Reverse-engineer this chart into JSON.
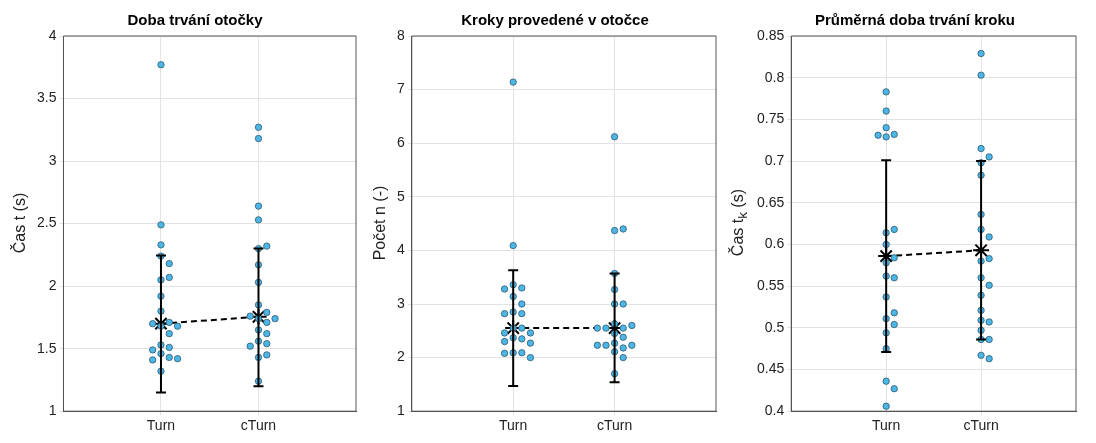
{
  "chart_data": [
    {
      "type": "scatter",
      "title": "Doba trvání otočky",
      "ylabel": "Čas t (s)",
      "categories": [
        "Turn",
        "cTurn"
      ],
      "ylim": [
        1,
        4
      ],
      "yticks": [
        1,
        1.5,
        2,
        2.5,
        3,
        3.5,
        4
      ],
      "grid": true,
      "series": [
        {
          "color": "#4db6e6",
          "marker": "circle",
          "x": [
            "Turn",
            "Turn",
            "Turn",
            "Turn",
            "Turn",
            "Turn",
            "Turn",
            "Turn",
            "Turn",
            "Turn",
            "Turn",
            "Turn",
            "Turn",
            "Turn",
            "Turn",
            "Turn",
            "Turn",
            "Turn",
            "Turn",
            "Turn",
            "Turn",
            "Turn",
            "cTurn",
            "cTurn",
            "cTurn",
            "cTurn",
            "cTurn",
            "cTurn",
            "cTurn",
            "cTurn",
            "cTurn",
            "cTurn",
            "cTurn",
            "cTurn",
            "cTurn",
            "cTurn",
            "cTurn",
            "cTurn",
            "cTurn",
            "cTurn",
            "cTurn",
            "cTurn",
            "cTurn",
            "cTurn"
          ],
          "values": [
            3.77,
            2.49,
            2.33,
            2.24,
            2.18,
            2.05,
            2.07,
            1.92,
            1.8,
            1.68,
            1.71,
            1.7,
            1.68,
            1.62,
            1.53,
            1.51,
            1.49,
            1.46,
            1.43,
            1.41,
            1.42,
            1.32,
            3.27,
            3.18,
            2.64,
            2.53,
            2.3,
            2.32,
            2.17,
            2.03,
            1.85,
            1.79,
            1.74,
            1.71,
            1.76,
            1.74,
            1.65,
            1.62,
            1.56,
            1.54,
            1.52,
            1.43,
            1.45,
            1.24
          ]
        },
        {
          "type": "line",
          "color": "#000000",
          "marker": "cross",
          "line_style": "dashed",
          "x": [
            "Turn",
            "cTurn"
          ],
          "values": [
            1.7,
            1.755
          ],
          "errors": [
            [
              1.15,
              2.245
            ],
            [
              1.2,
              2.3
            ]
          ]
        }
      ]
    },
    {
      "type": "scatter",
      "title": "Kroky provedené v otočce",
      "ylabel": "Počet n (-)",
      "categories": [
        "Turn",
        "cTurn"
      ],
      "ylim": [
        1,
        8
      ],
      "yticks": [
        1,
        2,
        3,
        4,
        5,
        6,
        7,
        8
      ],
      "grid": true,
      "series": [
        {
          "color": "#4db6e6",
          "marker": "circle",
          "x": [
            "Turn",
            "Turn",
            "Turn",
            "Turn",
            "Turn",
            "Turn",
            "Turn",
            "Turn",
            "Turn",
            "Turn",
            "Turn",
            "Turn",
            "Turn",
            "Turn",
            "Turn",
            "Turn",
            "Turn",
            "Turn",
            "Turn",
            "Turn",
            "Turn",
            "Turn",
            "cTurn",
            "cTurn",
            "cTurn",
            "cTurn",
            "cTurn",
            "cTurn",
            "cTurn",
            "cTurn",
            "cTurn",
            "cTurn",
            "cTurn",
            "cTurn",
            "cTurn",
            "cTurn",
            "cTurn",
            "cTurn",
            "cTurn",
            "cTurn",
            "cTurn",
            "cTurn",
            "cTurn",
            "cTurn"
          ],
          "values": [
            7.14,
            4.09,
            3.36,
            3.3,
            3.28,
            3.14,
            3,
            2.85,
            2.82,
            2.82,
            2.55,
            2.55,
            2.46,
            2.46,
            2.37,
            2.35,
            2.3,
            2.27,
            2.09,
            2.09,
            2.08,
            2,
            6.12,
            4.37,
            4.4,
            3.57,
            3.27,
            3,
            3,
            2.63,
            2.55,
            2.55,
            2.6,
            2.55,
            2.45,
            2.38,
            2.27,
            2.23,
            2.23,
            2.23,
            2.18,
            2.11,
            2,
            1.7
          ]
        },
        {
          "type": "line",
          "color": "#000000",
          "marker": "cross",
          "line_style": "dashed",
          "x": [
            "Turn",
            "cTurn"
          ],
          "values": [
            2.55,
            2.55
          ],
          "errors": [
            [
              1.47,
              3.63
            ],
            [
              1.54,
              3.57
            ]
          ]
        }
      ]
    },
    {
      "type": "scatter",
      "title": "Průměrná doba trvání kroku",
      "ylabel": "Čas t$_{k}$ (s)",
      "categories": [
        "Turn",
        "cTurn"
      ],
      "ylim": [
        0.4,
        0.85
      ],
      "yticks": [
        0.4,
        0.45,
        0.5,
        0.55,
        0.6,
        0.65,
        0.7,
        0.75,
        0.8,
        0.85
      ],
      "grid": true,
      "series": [
        {
          "color": "#4db6e6",
          "marker": "circle",
          "x": [
            "Turn",
            "Turn",
            "Turn",
            "Turn",
            "Turn",
            "Turn",
            "Turn",
            "Turn",
            "Turn",
            "Turn",
            "Turn",
            "Turn",
            "Turn",
            "Turn",
            "Turn",
            "Turn",
            "Turn",
            "Turn",
            "Turn",
            "Turn",
            "Turn",
            "Turn",
            "cTurn",
            "cTurn",
            "cTurn",
            "cTurn",
            "cTurn",
            "cTurn",
            "cTurn",
            "cTurn",
            "cTurn",
            "cTurn",
            "cTurn",
            "cTurn",
            "cTurn",
            "cTurn",
            "cTurn",
            "cTurn",
            "cTurn",
            "cTurn",
            "cTurn",
            "cTurn",
            "cTurn",
            "cTurn"
          ],
          "values": [
            0.783,
            0.76,
            0.74,
            0.732,
            0.729,
            0.731,
            0.614,
            0.618,
            0.6,
            0.578,
            0.584,
            0.562,
            0.56,
            0.537,
            0.511,
            0.518,
            0.504,
            0.494,
            0.475,
            0.436,
            0.427,
            0.406,
            0.829,
            0.803,
            0.715,
            0.705,
            0.698,
            0.683,
            0.636,
            0.618,
            0.609,
            0.58,
            0.583,
            0.56,
            0.551,
            0.539,
            0.521,
            0.509,
            0.507,
            0.497,
            0.486,
            0.486,
            0.467,
            0.463
          ]
        },
        {
          "type": "line",
          "color": "#000000",
          "marker": "cross",
          "line_style": "dashed",
          "x": [
            "Turn",
            "cTurn"
          ],
          "values": [
            0.586,
            0.593
          ],
          "errors": [
            [
              0.471,
              0.701
            ],
            [
              0.486,
              0.7
            ]
          ]
        }
      ]
    }
  ]
}
